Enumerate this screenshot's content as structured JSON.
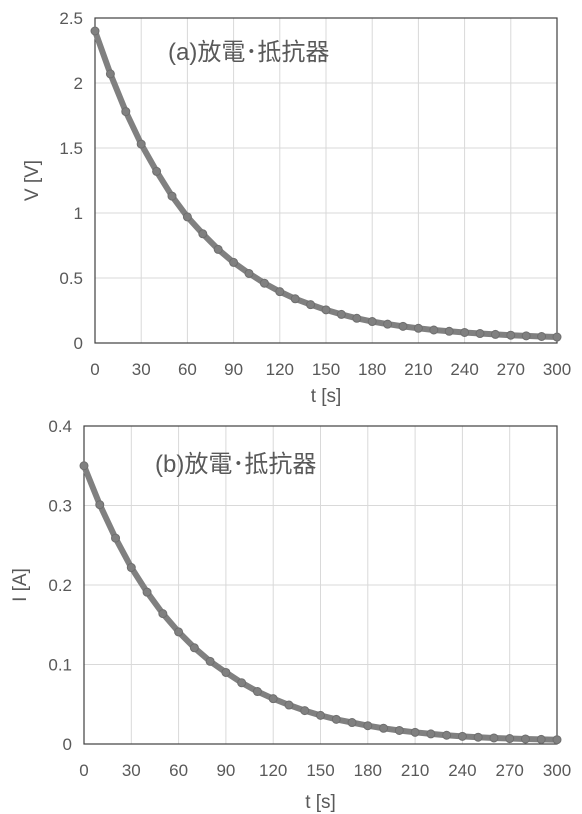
{
  "chart_data": [
    {
      "type": "scatter",
      "title": "",
      "annotation": "(a)放電･抵抗器",
      "xlabel": "t [s]",
      "ylabel": "V [V]",
      "xlim": [
        0,
        300
      ],
      "ylim": [
        0,
        2.5
      ],
      "x_ticks": [
        "0",
        "30",
        "60",
        "90",
        "120",
        "150",
        "180",
        "210",
        "240",
        "270",
        "300"
      ],
      "y_ticks": [
        "0",
        "0.5",
        "1",
        "1.5",
        "2",
        "2.5"
      ],
      "grid": true,
      "legend": "none",
      "series_color": "#808080",
      "x": [
        0,
        10,
        20,
        30,
        40,
        50,
        60,
        70,
        80,
        90,
        100,
        110,
        120,
        130,
        140,
        150,
        160,
        170,
        180,
        190,
        200,
        210,
        220,
        230,
        240,
        250,
        260,
        270,
        280,
        290,
        300
      ],
      "y": [
        2.4,
        2.07,
        1.78,
        1.53,
        1.32,
        1.13,
        0.97,
        0.84,
        0.72,
        0.62,
        0.535,
        0.46,
        0.395,
        0.34,
        0.295,
        0.255,
        0.22,
        0.19,
        0.165,
        0.145,
        0.128,
        0.113,
        0.1,
        0.09,
        0.081,
        0.073,
        0.066,
        0.06,
        0.055,
        0.05,
        0.046
      ]
    },
    {
      "type": "scatter",
      "title": "",
      "annotation": "(b)放電･抵抗器",
      "xlabel": "t [s]",
      "ylabel": "I [A]",
      "xlim": [
        0,
        300
      ],
      "ylim": [
        0,
        0.4
      ],
      "x_ticks": [
        "0",
        "30",
        "60",
        "90",
        "120",
        "150",
        "180",
        "210",
        "240",
        "270",
        "300"
      ],
      "y_ticks": [
        "0",
        "0.1",
        "0.2",
        "0.3",
        "0.4"
      ],
      "grid": true,
      "legend": "none",
      "series_color": "#808080",
      "x": [
        0,
        10,
        20,
        30,
        40,
        50,
        60,
        70,
        80,
        90,
        100,
        110,
        120,
        130,
        140,
        150,
        160,
        170,
        180,
        190,
        200,
        210,
        220,
        230,
        240,
        250,
        260,
        270,
        280,
        290,
        300
      ],
      "y": [
        0.35,
        0.301,
        0.259,
        0.222,
        0.191,
        0.164,
        0.141,
        0.121,
        0.104,
        0.09,
        0.077,
        0.066,
        0.057,
        0.049,
        0.042,
        0.036,
        0.031,
        0.027,
        0.023,
        0.0198,
        0.017,
        0.0147,
        0.0127,
        0.011,
        0.0096,
        0.0085,
        0.0076,
        0.0069,
        0.0063,
        0.0058,
        0.0054
      ]
    }
  ]
}
